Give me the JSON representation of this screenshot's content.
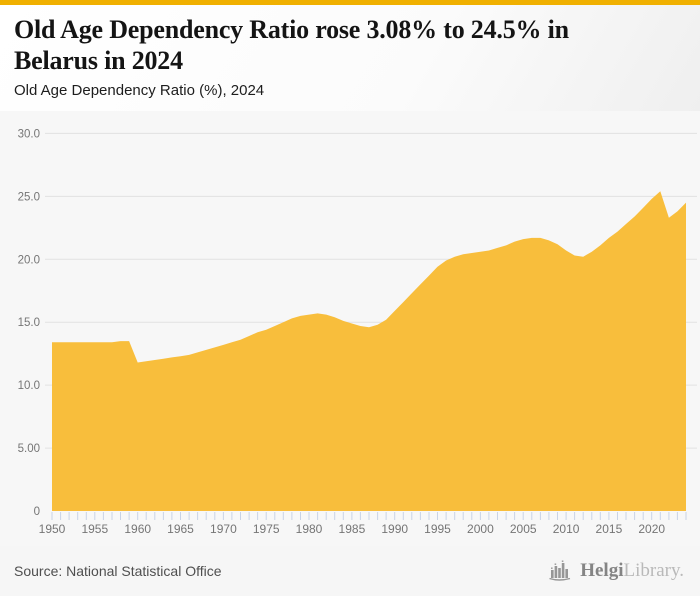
{
  "page": {
    "accent_color": "#F0B000",
    "background_color": "#f6f6f6"
  },
  "header": {
    "title": "Old Age Dependency Ratio rose 3.08% to 24.5% in Belarus in 2024",
    "subtitle": "Old Age Dependency Ratio (%), 2024"
  },
  "footer": {
    "source": "Source: National Statistical Office",
    "logo_primary": "Helgi",
    "logo_secondary": "Library."
  },
  "chart_data": {
    "type": "area",
    "title": "Old Age Dependency Ratio (%), 2024",
    "series_name": "Old Age Dependency Ratio (%)",
    "xlabel": "",
    "ylabel": "",
    "ylim": [
      0,
      30
    ],
    "xlim": [
      1950,
      2024
    ],
    "grid": true,
    "legend": false,
    "fill_color": "#F8BE3C",
    "gridline_color": "#e2e2e2",
    "axis_text_color": "#757575",
    "tick_color": "#c9d3e6",
    "yticks": [
      0,
      5,
      10,
      15,
      20,
      25,
      30
    ],
    "ytick_labels": [
      "0",
      "5.00",
      "10.0",
      "15.0",
      "20.0",
      "25.0",
      "30.0"
    ],
    "xticks": [
      1950,
      1955,
      1960,
      1965,
      1970,
      1975,
      1980,
      1985,
      1990,
      1995,
      2000,
      2005,
      2010,
      2015,
      2020
    ],
    "x": [
      1950,
      1951,
      1952,
      1953,
      1954,
      1955,
      1956,
      1957,
      1958,
      1959,
      1960,
      1961,
      1962,
      1963,
      1964,
      1965,
      1966,
      1967,
      1968,
      1969,
      1970,
      1971,
      1972,
      1973,
      1974,
      1975,
      1976,
      1977,
      1978,
      1979,
      1980,
      1981,
      1982,
      1983,
      1984,
      1985,
      1986,
      1987,
      1988,
      1989,
      1990,
      1991,
      1992,
      1993,
      1994,
      1995,
      1996,
      1997,
      1998,
      1999,
      2000,
      2001,
      2002,
      2003,
      2004,
      2005,
      2006,
      2007,
      2008,
      2009,
      2010,
      2011,
      2012,
      2013,
      2014,
      2015,
      2016,
      2017,
      2018,
      2019,
      2020,
      2021,
      2022,
      2023,
      2024
    ],
    "values": [
      13.4,
      13.4,
      13.4,
      13.4,
      13.4,
      13.4,
      13.4,
      13.4,
      13.5,
      13.5,
      11.8,
      11.9,
      12.0,
      12.1,
      12.2,
      12.3,
      12.4,
      12.6,
      12.8,
      13.0,
      13.2,
      13.4,
      13.6,
      13.9,
      14.2,
      14.4,
      14.7,
      15.0,
      15.3,
      15.5,
      15.6,
      15.7,
      15.6,
      15.4,
      15.1,
      14.9,
      14.7,
      14.6,
      14.8,
      15.2,
      15.9,
      16.6,
      17.3,
      18.0,
      18.7,
      19.4,
      19.9,
      20.2,
      20.4,
      20.5,
      20.6,
      20.7,
      20.9,
      21.1,
      21.4,
      21.6,
      21.7,
      21.7,
      21.5,
      21.2,
      20.7,
      20.3,
      20.2,
      20.6,
      21.1,
      21.7,
      22.2,
      22.8,
      23.4,
      24.1,
      24.8,
      25.4,
      23.3,
      23.8,
      24.5
    ]
  }
}
